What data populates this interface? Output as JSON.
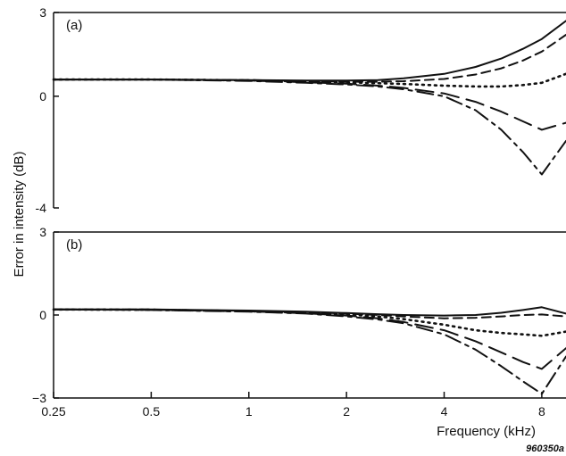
{
  "chart_data": [
    {
      "type": "line",
      "panel": "(a)",
      "ylabel": "Error in intensity (dB)",
      "xlabel": "Frequency (kHz)",
      "x_scale": "log",
      "xlim": [
        0.25,
        9.5
      ],
      "ylim": [
        -4,
        3
      ],
      "yticks": [
        {
          "value": 3,
          "label": "3"
        },
        {
          "value": 0,
          "label": "0"
        },
        {
          "value": -4,
          "label": "-4"
        }
      ],
      "x": [
        0.25,
        0.5,
        1,
        1.5,
        2,
        2.5,
        3,
        4,
        5,
        6,
        7,
        8,
        9.5
      ],
      "series": [
        {
          "style": "solid",
          "values": [
            0.6,
            0.6,
            0.58,
            0.56,
            0.56,
            0.58,
            0.64,
            0.8,
            1.05,
            1.35,
            1.7,
            2.05,
            2.7
          ]
        },
        {
          "style": "dashed",
          "values": [
            0.6,
            0.6,
            0.58,
            0.55,
            0.52,
            0.52,
            0.54,
            0.62,
            0.78,
            1.0,
            1.28,
            1.6,
            2.2
          ]
        },
        {
          "style": "dotted",
          "values": [
            0.6,
            0.6,
            0.57,
            0.53,
            0.5,
            0.47,
            0.44,
            0.38,
            0.35,
            0.35,
            0.4,
            0.48,
            0.8
          ]
        },
        {
          "style": "longdash",
          "values": [
            0.6,
            0.6,
            0.56,
            0.5,
            0.45,
            0.38,
            0.3,
            0.1,
            -0.2,
            -0.55,
            -0.9,
            -1.2,
            -0.95
          ]
        },
        {
          "style": "dashdot",
          "values": [
            0.6,
            0.6,
            0.55,
            0.48,
            0.42,
            0.35,
            0.25,
            0.0,
            -0.5,
            -1.2,
            -2.0,
            -2.8,
            -1.6
          ]
        }
      ]
    },
    {
      "type": "line",
      "panel": "(b)",
      "ylabel": "Error in intensity (dB)",
      "xlabel": "Frequency (kHz)",
      "x_scale": "log",
      "xlim": [
        0.25,
        9.5
      ],
      "ylim": [
        -3,
        3
      ],
      "yticks": [
        {
          "value": 3,
          "label": "3"
        },
        {
          "value": 0,
          "label": "0"
        },
        {
          "value": -3,
          "label": "−3"
        }
      ],
      "xticks": [
        {
          "value": 0.25,
          "label": "0.25"
        },
        {
          "value": 0.5,
          "label": "0.5"
        },
        {
          "value": 1,
          "label": "1"
        },
        {
          "value": 2,
          "label": "2"
        },
        {
          "value": 4,
          "label": "4"
        },
        {
          "value": 8,
          "label": "8"
        }
      ],
      "x": [
        0.25,
        0.5,
        1,
        1.5,
        2,
        2.5,
        3,
        4,
        5,
        6,
        7,
        8,
        9.5
      ],
      "series": [
        {
          "style": "solid",
          "values": [
            0.2,
            0.2,
            0.16,
            0.12,
            0.07,
            0.03,
            0.0,
            -0.02,
            0.0,
            0.08,
            0.18,
            0.28,
            0.05
          ]
        },
        {
          "style": "dashed",
          "values": [
            0.2,
            0.2,
            0.15,
            0.1,
            0.05,
            0.0,
            -0.05,
            -0.12,
            -0.1,
            -0.05,
            0.0,
            0.02,
            -0.05
          ]
        },
        {
          "style": "dotted",
          "values": [
            0.2,
            0.19,
            0.14,
            0.08,
            0.02,
            -0.05,
            -0.15,
            -0.35,
            -0.55,
            -0.65,
            -0.7,
            -0.75,
            -0.6
          ]
        },
        {
          "style": "longdash",
          "values": [
            0.2,
            0.19,
            0.13,
            0.06,
            -0.02,
            -0.12,
            -0.25,
            -0.55,
            -0.95,
            -1.35,
            -1.7,
            -1.95,
            -1.2
          ]
        },
        {
          "style": "dashdot",
          "values": [
            0.2,
            0.18,
            0.12,
            0.05,
            -0.05,
            -0.16,
            -0.3,
            -0.7,
            -1.25,
            -1.85,
            -2.4,
            -2.85,
            -1.5
          ]
        }
      ]
    }
  ],
  "figure_id": "960350a"
}
